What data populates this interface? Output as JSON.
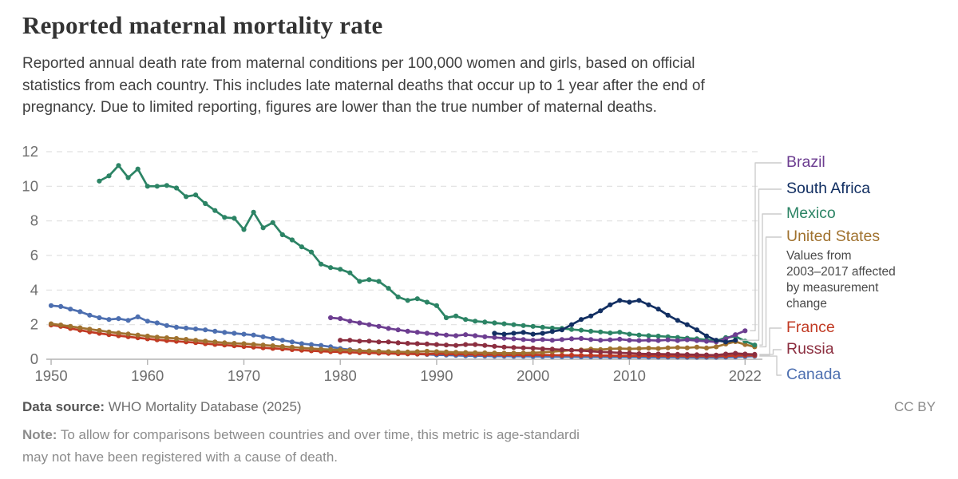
{
  "header": {
    "title": "Reported maternal mortality rate",
    "subtitle_lines": [
      "Reported annual death rate from maternal conditions per 100,000 women and girls, based on official",
      "statistics from each country. This includes late maternal deaths that occur up to 1 year after the end of",
      "pregnancy. Due to limited reporting, figures are lower than the true number of maternal deaths."
    ]
  },
  "footer": {
    "datasource_label": "Data source:",
    "datasource_value": "WHO Mortality Database (2025)",
    "license": "CC BY",
    "note_label": "Note:",
    "note_lines": [
      "To allow for comparisons between countries and over time, this metric is age-standardi",
      "may not have been registered with a cause of death."
    ]
  },
  "chart_data": {
    "type": "line",
    "title": "Reported maternal mortality rate",
    "xlabel": "",
    "ylabel": "",
    "xlim": [
      1949.5,
      2023.8
    ],
    "ylim": [
      0,
      12
    ],
    "x_ticks": [
      1950,
      1960,
      1970,
      1980,
      1990,
      2000,
      2010,
      2022
    ],
    "y_ticks": [
      0,
      2,
      4,
      6,
      8,
      10,
      12
    ],
    "grid": "horizontal-dashed",
    "legend_position": "right-labels-with-leader-lines",
    "marker": "circle",
    "legend_order": [
      "Brazil",
      "South Africa",
      "Mexico",
      "United States",
      "France",
      "Russia",
      "Canada"
    ],
    "annotation": {
      "attached_to": "United States",
      "text": "Values from 2003–2017 affected by measurement change",
      "lines": [
        "Values from",
        "2003–2017 affected",
        "by measurement",
        "change"
      ]
    },
    "series": [
      {
        "name": "Canada",
        "color": "#4d6fb0",
        "start_year": 1950,
        "values": [
          3.1,
          3.05,
          2.9,
          2.75,
          2.55,
          2.4,
          2.3,
          2.35,
          2.25,
          2.45,
          2.2,
          2.1,
          1.95,
          1.85,
          1.8,
          1.75,
          1.7,
          1.62,
          1.55,
          1.5,
          1.45,
          1.4,
          1.3,
          1.2,
          1.1,
          1.0,
          0.9,
          0.85,
          0.8,
          0.72,
          0.62,
          0.55,
          0.5,
          0.45,
          0.42,
          0.4,
          0.36,
          0.33,
          0.3,
          0.28,
          0.25,
          0.24,
          0.22,
          0.2,
          0.2,
          0.19,
          0.18,
          0.18,
          0.17,
          0.17,
          0.16,
          0.16,
          0.15,
          0.15,
          0.15,
          0.14,
          0.14,
          0.14,
          0.13,
          0.13,
          0.13,
          0.13,
          0.12,
          0.12,
          0.12,
          0.12,
          0.11,
          0.11,
          0.11,
          0.11,
          0.12,
          0.14,
          0.16,
          0.18
        ]
      },
      {
        "name": "France",
        "color": "#c13a23",
        "start_year": 1950,
        "values": [
          1.98,
          1.9,
          1.78,
          1.68,
          1.58,
          1.5,
          1.42,
          1.36,
          1.3,
          1.24,
          1.18,
          1.12,
          1.08,
          1.04,
          1.0,
          0.96,
          0.9,
          0.86,
          0.82,
          0.78,
          0.74,
          0.7,
          0.66,
          0.63,
          0.6,
          0.56,
          0.52,
          0.49,
          0.46,
          0.44,
          0.42,
          0.4,
          0.38,
          0.37,
          0.35,
          0.34,
          0.32,
          0.31,
          0.3,
          0.3,
          0.32,
          0.3,
          0.29,
          0.28,
          0.27,
          0.26,
          0.26,
          0.25,
          0.25,
          0.24,
          0.26,
          0.25,
          0.24,
          0.23,
          0.23,
          0.22,
          0.22,
          0.21,
          0.21,
          0.2,
          0.2,
          0.2,
          0.2,
          0.19,
          0.19,
          0.19,
          0.18,
          0.18,
          0.18,
          0.18,
          0.19,
          0.21,
          0.22,
          0.22
        ]
      },
      {
        "name": "United States",
        "color": "#a0722f",
        "start_year": 1950,
        "values": [
          2.05,
          1.98,
          1.9,
          1.82,
          1.74,
          1.66,
          1.58,
          1.52,
          1.46,
          1.4,
          1.34,
          1.28,
          1.24,
          1.2,
          1.15,
          1.1,
          1.05,
          1.0,
          0.95,
          0.92,
          0.9,
          0.86,
          0.82,
          0.78,
          0.74,
          0.7,
          0.66,
          0.62,
          0.58,
          0.56,
          0.54,
          0.52,
          0.5,
          0.48,
          0.46,
          0.44,
          0.43,
          0.42,
          0.44,
          0.46,
          0.44,
          0.42,
          0.4,
          0.39,
          0.38,
          0.37,
          0.36,
          0.35,
          0.35,
          0.36,
          0.38,
          0.4,
          0.44,
          0.48,
          0.52,
          0.54,
          0.58,
          0.56,
          0.6,
          0.62,
          0.6,
          0.62,
          0.64,
          0.62,
          0.66,
          0.68,
          0.66,
          0.7,
          0.65,
          0.72,
          0.88,
          1.02,
          0.85,
          0.72
        ]
      },
      {
        "name": "Russia",
        "color": "#8c2f40",
        "start_year": 1980,
        "values": [
          1.1,
          1.1,
          1.05,
          1.05,
          1.0,
          1.0,
          0.95,
          0.92,
          0.9,
          0.88,
          0.85,
          0.82,
          0.8,
          0.85,
          0.85,
          0.8,
          0.75,
          0.7,
          0.68,
          0.66,
          0.64,
          0.6,
          0.58,
          0.55,
          0.52,
          0.5,
          0.46,
          0.42,
          0.4,
          0.37,
          0.35,
          0.32,
          0.3,
          0.3,
          0.29,
          0.28,
          0.27,
          0.26,
          0.25,
          0.24,
          0.3,
          0.34,
          0.3,
          0.28
        ]
      },
      {
        "name": "Mexico",
        "color": "#2c8465",
        "start_year": 1955,
        "values": [
          10.3,
          10.6,
          11.2,
          10.5,
          11.0,
          10.0,
          10.0,
          10.05,
          9.9,
          9.4,
          9.5,
          9.0,
          8.6,
          8.2,
          8.15,
          7.5,
          8.5,
          7.6,
          7.9,
          7.2,
          6.9,
          6.5,
          6.2,
          5.5,
          5.3,
          5.2,
          5.0,
          4.5,
          4.6,
          4.5,
          4.1,
          3.6,
          3.4,
          3.5,
          3.3,
          3.1,
          2.4,
          2.5,
          2.3,
          2.2,
          2.15,
          2.1,
          2.05,
          2.0,
          1.95,
          1.9,
          1.85,
          1.8,
          1.78,
          1.72,
          1.68,
          1.62,
          1.58,
          1.52,
          1.56,
          1.45,
          1.4,
          1.36,
          1.34,
          1.3,
          1.26,
          1.22,
          1.18,
          1.12,
          1.06,
          1.25,
          1.32,
          1.05,
          0.82
        ]
      },
      {
        "name": "Brazil",
        "color": "#6d3e91",
        "start_year": 1979,
        "values": [
          2.4,
          2.35,
          2.2,
          2.1,
          2.0,
          1.9,
          1.78,
          1.7,
          1.62,
          1.56,
          1.5,
          1.45,
          1.4,
          1.36,
          1.42,
          1.36,
          1.3,
          1.26,
          1.22,
          1.18,
          1.14,
          1.1,
          1.14,
          1.1,
          1.14,
          1.18,
          1.2,
          1.14,
          1.1,
          1.12,
          1.16,
          1.1,
          1.08,
          1.1,
          1.08,
          1.12,
          1.08,
          1.12,
          1.08,
          1.04,
          1.0,
          1.18,
          1.42,
          1.65
        ]
      },
      {
        "name": "South Africa",
        "color": "#122f62",
        "start_year": 1996,
        "values": [
          1.5,
          1.45,
          1.5,
          1.55,
          1.45,
          1.5,
          1.6,
          1.7,
          2.0,
          2.3,
          2.5,
          2.8,
          3.15,
          3.4,
          3.3,
          3.4,
          3.15,
          2.9,
          2.55,
          2.25,
          2.0,
          1.7,
          1.35,
          1.1,
          1.0,
          1.1
        ]
      }
    ],
    "axis_colors": {
      "axis": "#b3b3b3",
      "grid": "#e0e0e0",
      "tick_text": "#6e6e6e"
    },
    "annotation_color": "#4a4a4a",
    "leader_line_color": "#cccccc"
  }
}
